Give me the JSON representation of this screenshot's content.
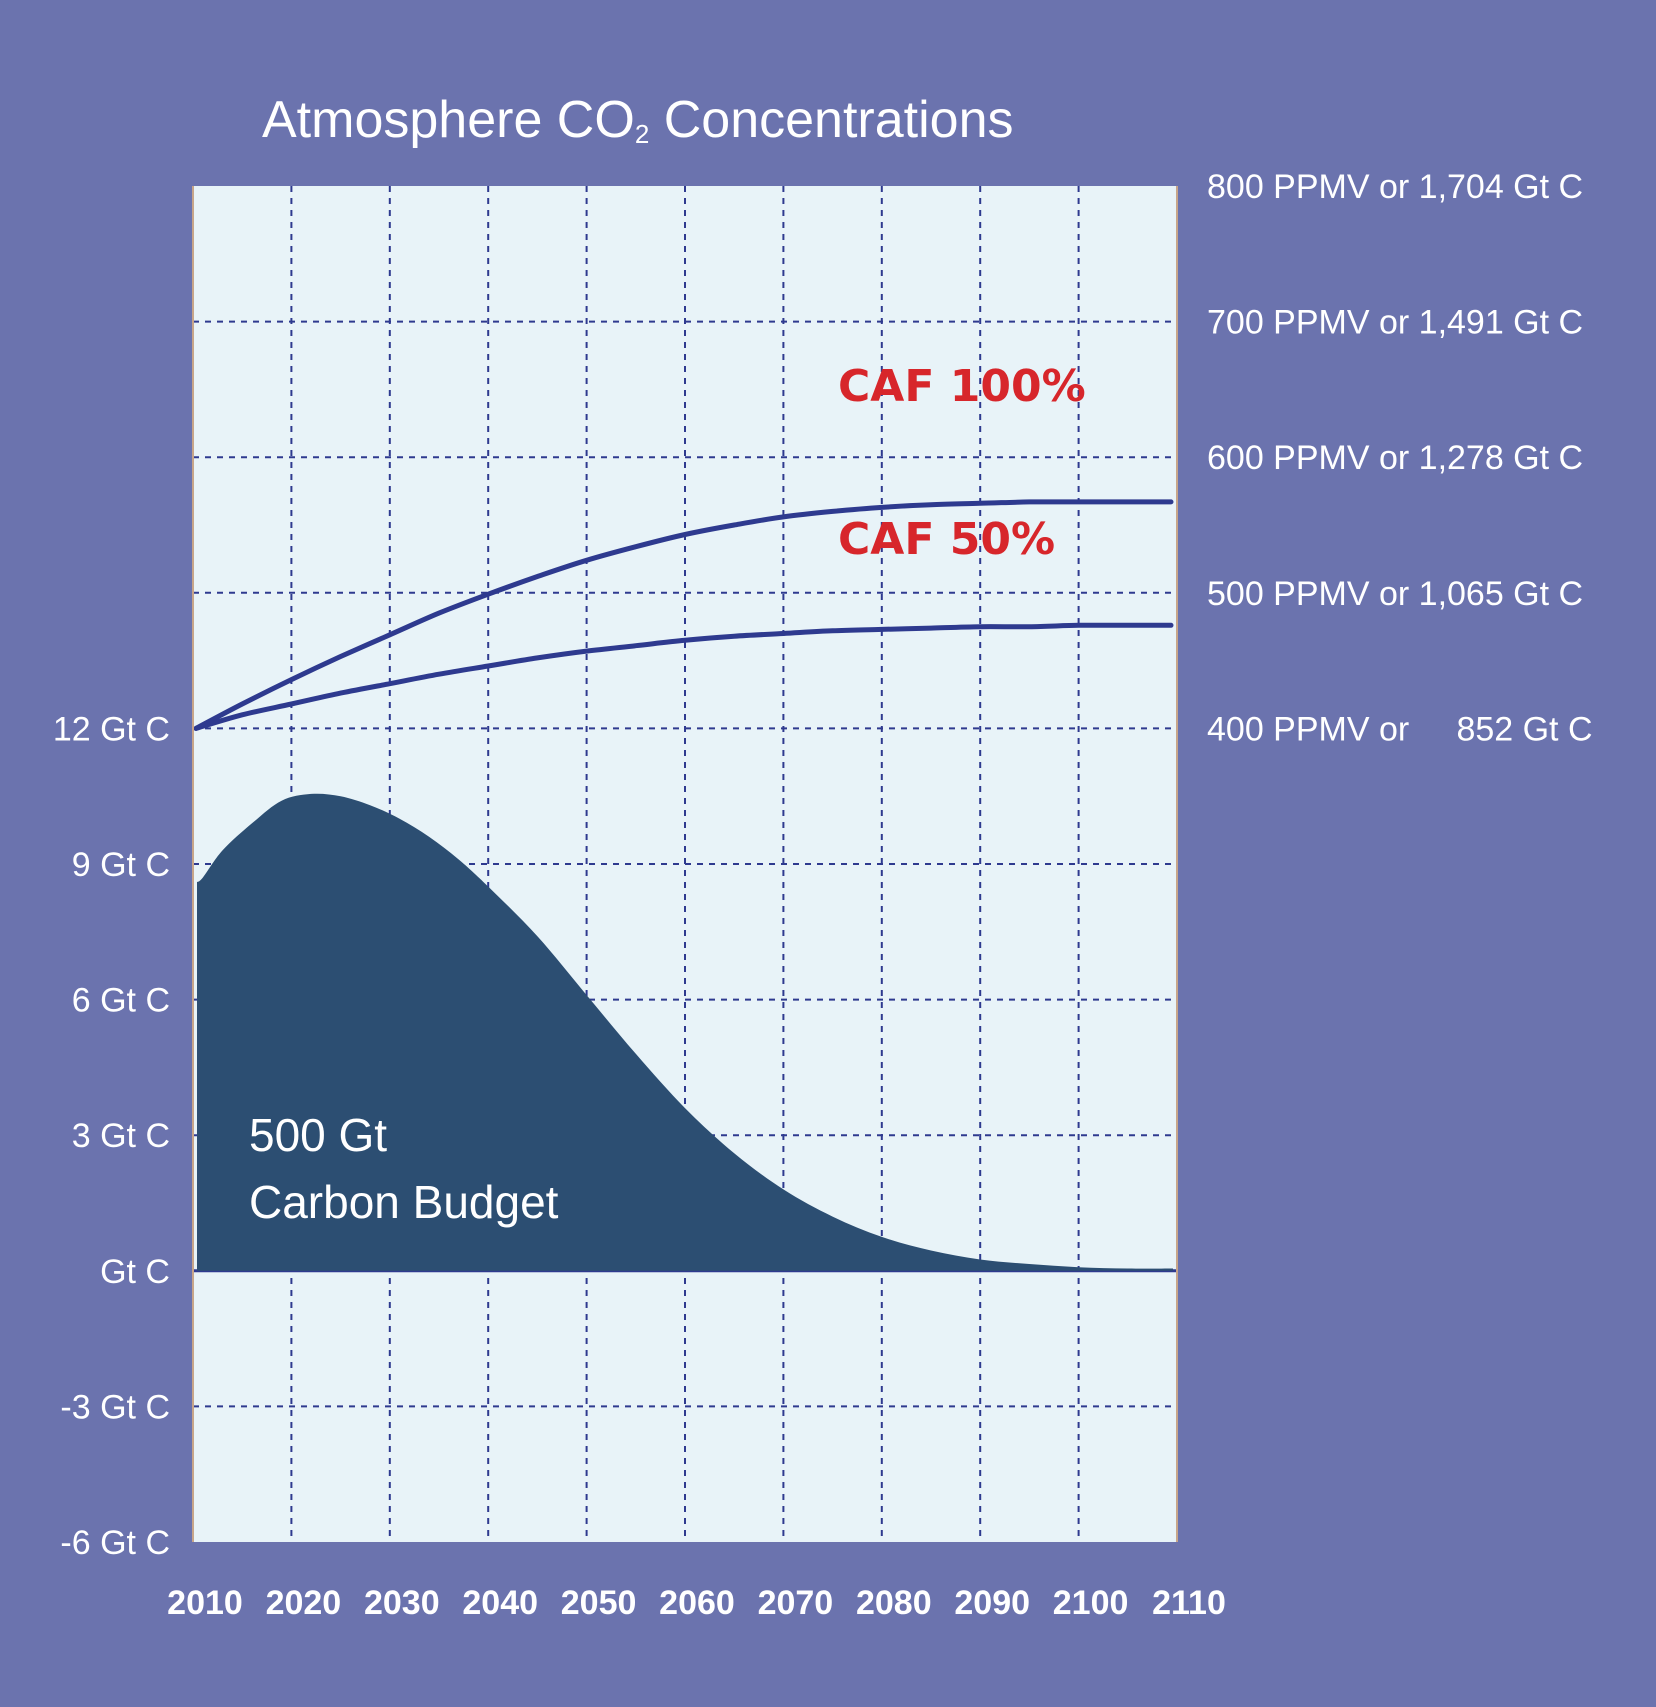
{
  "chart_data": {
    "type": "line",
    "title_prefix": "Atmosphere CO",
    "title_subscript": "2",
    "title_suffix": " Concentrations",
    "x_ticks": [
      "2010",
      "2020",
      "2030",
      "2040",
      "2050",
      "2060",
      "2070",
      "2080",
      "2090",
      "2100",
      "2110"
    ],
    "xlim": [
      2010,
      2110
    ],
    "left_axis": {
      "ticks": [
        {
          "value": 12,
          "label": "12 Gt C"
        },
        {
          "value": 9,
          "label": "9 Gt  C"
        },
        {
          "value": 6,
          "label": "6 Gt  C"
        },
        {
          "value": 3,
          "label": "3 Gt  C"
        },
        {
          "value": 0,
          "label": "Gt  C"
        },
        {
          "value": -3,
          "label": "-3 Gt  C"
        },
        {
          "value": -6,
          "label": "-6 Gt  C"
        }
      ],
      "ylim": [
        -6,
        24
      ]
    },
    "right_axis": {
      "ticks": [
        {
          "value": 800,
          "label": "800 PPMV or 1,704 Gt C"
        },
        {
          "value": 700,
          "label": "700 PPMV or 1,491 Gt C"
        },
        {
          "value": 600,
          "label": "600 PPMV or 1,278 Gt C"
        },
        {
          "value": 500,
          "label": "500 PPMV or 1,065 Gt C"
        },
        {
          "value": 400,
          "label": "400 PPMV or     852 Gt C"
        }
      ]
    },
    "series": [
      {
        "name": "CAF 100%",
        "axis": "right",
        "color": "#2e3a8f",
        "x": [
          2010,
          2015,
          2020,
          2025,
          2030,
          2035,
          2040,
          2045,
          2050,
          2055,
          2060,
          2065,
          2070,
          2075,
          2080,
          2085,
          2090,
          2095,
          2100,
          2105,
          2110
        ],
        "y": [
          400,
          418,
          436,
          453,
          469,
          485,
          499,
          512,
          524,
          534,
          543,
          550,
          556,
          560,
          563,
          565,
          566,
          567,
          567,
          567,
          567
        ]
      },
      {
        "name": "CAF 50%",
        "axis": "right",
        "color": "#2e3a8f",
        "x": [
          2010,
          2015,
          2020,
          2025,
          2030,
          2035,
          2040,
          2045,
          2050,
          2055,
          2060,
          2065,
          2070,
          2075,
          2080,
          2085,
          2090,
          2095,
          2100,
          2105,
          2110
        ],
        "y": [
          400,
          410,
          418,
          426,
          433,
          440,
          446,
          452,
          457,
          461,
          465,
          468,
          470,
          472,
          473,
          474,
          475,
          475,
          476,
          476,
          476
        ]
      }
    ],
    "area": {
      "axis": "left",
      "color": "#2c4e72",
      "label_line1": "500 Gt",
      "label_line2": "Carbon Budget",
      "x": [
        2010,
        2011,
        2013,
        2016,
        2019,
        2022,
        2025,
        2028,
        2031,
        2034,
        2037,
        2040,
        2045,
        2050,
        2055,
        2060,
        2065,
        2070,
        2075,
        2080,
        2085,
        2090,
        2095,
        2100,
        2105,
        2110
      ],
      "y": [
        8.6,
        8.7,
        9.3,
        9.9,
        10.4,
        10.55,
        10.5,
        10.3,
        10.0,
        9.6,
        9.1,
        8.5,
        7.4,
        6.1,
        4.8,
        3.6,
        2.6,
        1.8,
        1.2,
        0.75,
        0.45,
        0.25,
        0.15,
        0.08,
        0.05,
        0.05
      ]
    },
    "grid": true
  }
}
